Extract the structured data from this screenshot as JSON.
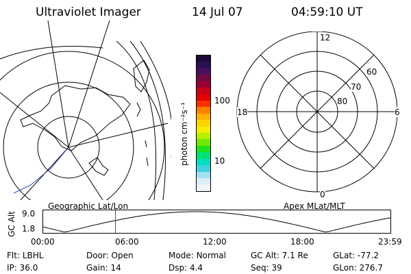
{
  "header": {
    "instrument": "Ultraviolet Imager",
    "date": "14 Jul 07",
    "time": "04:59:10 UT"
  },
  "colorbar": {
    "unit_label": "photon cm⁻²s⁻¹",
    "ticks": [
      "100",
      "10"
    ],
    "colors": [
      "#1a0a3a",
      "#2b1050",
      "#4a1060",
      "#700a40",
      "#9a0030",
      "#c80018",
      "#e60000",
      "#ff3000",
      "#ff8000",
      "#ffb000",
      "#ffd400",
      "#f0f000",
      "#b8f000",
      "#70e800",
      "#20e020",
      "#00e070",
      "#00e0c0",
      "#40d0e0",
      "#a0e0f0",
      "#d8eef4",
      "#f0f4f6"
    ]
  },
  "left_map": {
    "label": "Geographic Lat/Lon"
  },
  "right_dial": {
    "label": "Apex  MLat/MLT",
    "mlt_labels": {
      "top": "12",
      "left": "18",
      "right": "6",
      "bottom": "0"
    },
    "mlat_labels": [
      "60",
      "70",
      "80"
    ]
  },
  "altitude_strip": {
    "ylabel": "GC Alt",
    "y_ticks": [
      "9.0",
      "1.8"
    ],
    "x_ticks": [
      "00:00",
      "06:00",
      "12:00",
      "18:00",
      "23:59"
    ],
    "current_time_hours": 4.986,
    "marker_color": "#ff0000"
  },
  "info": {
    "row1": [
      {
        "key": "Flt:",
        "value": "LBHL"
      },
      {
        "key": "Door:",
        "value": "Open"
      },
      {
        "key": "Mode:",
        "value": "Normal"
      },
      {
        "key": "GC Alt:",
        "value": "7.1 Re"
      },
      {
        "key": "GLat:",
        "value": "-77.2"
      }
    ],
    "row2": [
      {
        "key": "IP:",
        "value": "36.0"
      },
      {
        "key": "Gain:",
        "value": "14"
      },
      {
        "key": "Dsp:",
        "value": "4.4"
      },
      {
        "key": "Seq:",
        "value": "39"
      },
      {
        "key": "GLon:",
        "value": "276.7"
      }
    ]
  }
}
